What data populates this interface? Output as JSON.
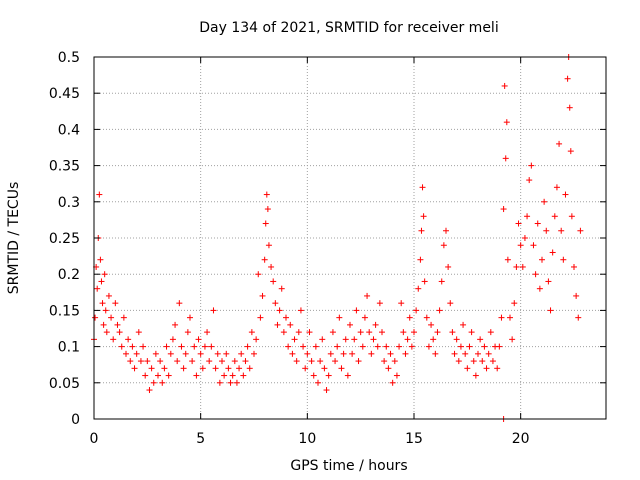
{
  "chart_data": {
    "type": "scatter",
    "title": "Day 134 of 2021, SRMTID for receiver meli",
    "xlabel": "GPS time / hours",
    "ylabel": "SRMTID / TECUs",
    "xlim": [
      0,
      24
    ],
    "ylim": [
      0,
      0.5
    ],
    "grid": true,
    "marker": "+",
    "color": "#ff0000",
    "x_ticks": [
      0,
      5,
      10,
      15,
      20
    ],
    "x_tick_labels": [
      "0",
      "5",
      "10",
      "15",
      "20"
    ],
    "y_ticks": [
      0,
      0.05,
      0.1,
      0.15,
      0.2,
      0.25,
      0.3,
      0.35,
      0.4,
      0.45,
      0.5
    ],
    "y_tick_labels": [
      "0",
      "0.05",
      "0.1",
      "0.15",
      "0.2",
      "0.25",
      "0.3",
      "0.35",
      "0.4",
      "0.45",
      "0.5"
    ],
    "series": [
      {
        "name": "SRMTID",
        "points": [
          [
            0.0,
            0.11
          ],
          [
            0.05,
            0.14
          ],
          [
            0.1,
            0.21
          ],
          [
            0.15,
            0.18
          ],
          [
            0.2,
            0.25
          ],
          [
            0.25,
            0.31
          ],
          [
            0.3,
            0.22
          ],
          [
            0.35,
            0.19
          ],
          [
            0.4,
            0.16
          ],
          [
            0.45,
            0.13
          ],
          [
            0.5,
            0.2
          ],
          [
            0.55,
            0.15
          ],
          [
            0.6,
            0.12
          ],
          [
            0.7,
            0.17
          ],
          [
            0.8,
            0.14
          ],
          [
            0.9,
            0.11
          ],
          [
            1.0,
            0.16
          ],
          [
            1.1,
            0.13
          ],
          [
            1.2,
            0.12
          ],
          [
            1.3,
            0.1
          ],
          [
            1.4,
            0.14
          ],
          [
            1.5,
            0.09
          ],
          [
            1.6,
            0.11
          ],
          [
            1.7,
            0.08
          ],
          [
            1.8,
            0.1
          ],
          [
            1.9,
            0.07
          ],
          [
            2.0,
            0.09
          ],
          [
            2.1,
            0.12
          ],
          [
            2.2,
            0.08
          ],
          [
            2.3,
            0.1
          ],
          [
            2.4,
            0.06
          ],
          [
            2.5,
            0.08
          ],
          [
            2.6,
            0.04
          ],
          [
            2.7,
            0.07
          ],
          [
            2.8,
            0.05
          ],
          [
            2.9,
            0.09
          ],
          [
            3.0,
            0.06
          ],
          [
            3.1,
            0.08
          ],
          [
            3.2,
            0.05
          ],
          [
            3.3,
            0.07
          ],
          [
            3.4,
            0.1
          ],
          [
            3.5,
            0.06
          ],
          [
            3.6,
            0.09
          ],
          [
            3.7,
            0.11
          ],
          [
            3.8,
            0.13
          ],
          [
            3.9,
            0.08
          ],
          [
            4.0,
            0.16
          ],
          [
            4.1,
            0.1
          ],
          [
            4.2,
            0.07
          ],
          [
            4.3,
            0.09
          ],
          [
            4.4,
            0.12
          ],
          [
            4.5,
            0.14
          ],
          [
            4.6,
            0.08
          ],
          [
            4.7,
            0.1
          ],
          [
            4.8,
            0.06
          ],
          [
            4.9,
            0.11
          ],
          [
            5.0,
            0.09
          ],
          [
            5.1,
            0.07
          ],
          [
            5.2,
            0.1
          ],
          [
            5.3,
            0.12
          ],
          [
            5.4,
            0.08
          ],
          [
            5.5,
            0.1
          ],
          [
            5.6,
            0.15
          ],
          [
            5.7,
            0.07
          ],
          [
            5.8,
            0.09
          ],
          [
            5.9,
            0.05
          ],
          [
            6.0,
            0.08
          ],
          [
            6.1,
            0.06
          ],
          [
            6.2,
            0.09
          ],
          [
            6.3,
            0.07
          ],
          [
            6.4,
            0.05
          ],
          [
            6.5,
            0.06
          ],
          [
            6.6,
            0.08
          ],
          [
            6.7,
            0.05
          ],
          [
            6.8,
            0.07
          ],
          [
            6.9,
            0.09
          ],
          [
            7.0,
            0.06
          ],
          [
            7.1,
            0.08
          ],
          [
            7.2,
            0.1
          ],
          [
            7.3,
            0.07
          ],
          [
            7.4,
            0.12
          ],
          [
            7.5,
            0.09
          ],
          [
            7.6,
            0.11
          ],
          [
            7.7,
            0.2
          ],
          [
            7.8,
            0.14
          ],
          [
            7.9,
            0.17
          ],
          [
            8.0,
            0.22
          ],
          [
            8.05,
            0.27
          ],
          [
            8.1,
            0.31
          ],
          [
            8.15,
            0.29
          ],
          [
            8.2,
            0.24
          ],
          [
            8.3,
            0.21
          ],
          [
            8.4,
            0.19
          ],
          [
            8.5,
            0.16
          ],
          [
            8.6,
            0.13
          ],
          [
            8.7,
            0.15
          ],
          [
            8.8,
            0.18
          ],
          [
            8.9,
            0.12
          ],
          [
            9.0,
            0.14
          ],
          [
            9.1,
            0.1
          ],
          [
            9.2,
            0.13
          ],
          [
            9.3,
            0.09
          ],
          [
            9.4,
            0.11
          ],
          [
            9.5,
            0.08
          ],
          [
            9.6,
            0.12
          ],
          [
            9.7,
            0.15
          ],
          [
            9.8,
            0.1
          ],
          [
            9.9,
            0.07
          ],
          [
            10.0,
            0.09
          ],
          [
            10.1,
            0.12
          ],
          [
            10.2,
            0.08
          ],
          [
            10.3,
            0.06
          ],
          [
            10.4,
            0.1
          ],
          [
            10.5,
            0.05
          ],
          [
            10.6,
            0.08
          ],
          [
            10.7,
            0.11
          ],
          [
            10.8,
            0.07
          ],
          [
            10.9,
            0.04
          ],
          [
            11.0,
            0.06
          ],
          [
            11.1,
            0.09
          ],
          [
            11.2,
            0.12
          ],
          [
            11.3,
            0.08
          ],
          [
            11.4,
            0.1
          ],
          [
            11.5,
            0.14
          ],
          [
            11.6,
            0.07
          ],
          [
            11.7,
            0.09
          ],
          [
            11.8,
            0.11
          ],
          [
            11.9,
            0.06
          ],
          [
            12.0,
            0.13
          ],
          [
            12.1,
            0.09
          ],
          [
            12.2,
            0.11
          ],
          [
            12.3,
            0.15
          ],
          [
            12.4,
            0.08
          ],
          [
            12.5,
            0.12
          ],
          [
            12.6,
            0.1
          ],
          [
            12.7,
            0.14
          ],
          [
            12.8,
            0.17
          ],
          [
            12.9,
            0.12
          ],
          [
            13.0,
            0.09
          ],
          [
            13.1,
            0.11
          ],
          [
            13.2,
            0.13
          ],
          [
            13.3,
            0.1
          ],
          [
            13.4,
            0.16
          ],
          [
            13.5,
            0.12
          ],
          [
            13.6,
            0.08
          ],
          [
            13.7,
            0.1
          ],
          [
            13.8,
            0.07
          ],
          [
            13.9,
            0.09
          ],
          [
            14.0,
            0.05
          ],
          [
            14.1,
            0.08
          ],
          [
            14.2,
            0.06
          ],
          [
            14.3,
            0.1
          ],
          [
            14.4,
            0.16
          ],
          [
            14.5,
            0.12
          ],
          [
            14.6,
            0.09
          ],
          [
            14.7,
            0.11
          ],
          [
            14.8,
            0.14
          ],
          [
            14.9,
            0.1
          ],
          [
            15.0,
            0.12
          ],
          [
            15.1,
            0.15
          ],
          [
            15.2,
            0.18
          ],
          [
            15.3,
            0.22
          ],
          [
            15.35,
            0.26
          ],
          [
            15.4,
            0.32
          ],
          [
            15.45,
            0.28
          ],
          [
            15.5,
            0.19
          ],
          [
            15.6,
            0.14
          ],
          [
            15.7,
            0.1
          ],
          [
            15.8,
            0.13
          ],
          [
            15.9,
            0.11
          ],
          [
            16.0,
            0.09
          ],
          [
            16.1,
            0.12
          ],
          [
            16.2,
            0.15
          ],
          [
            16.3,
            0.19
          ],
          [
            16.4,
            0.24
          ],
          [
            16.5,
            0.26
          ],
          [
            16.6,
            0.21
          ],
          [
            16.7,
            0.16
          ],
          [
            16.8,
            0.12
          ],
          [
            16.9,
            0.09
          ],
          [
            17.0,
            0.11
          ],
          [
            17.1,
            0.08
          ],
          [
            17.2,
            0.1
          ],
          [
            17.3,
            0.13
          ],
          [
            17.4,
            0.09
          ],
          [
            17.5,
            0.07
          ],
          [
            17.6,
            0.1
          ],
          [
            17.7,
            0.12
          ],
          [
            17.8,
            0.08
          ],
          [
            17.9,
            0.06
          ],
          [
            18.0,
            0.09
          ],
          [
            18.1,
            0.11
          ],
          [
            18.2,
            0.08
          ],
          [
            18.3,
            0.1
          ],
          [
            18.4,
            0.07
          ],
          [
            18.5,
            0.09
          ],
          [
            18.6,
            0.12
          ],
          [
            18.7,
            0.08
          ],
          [
            18.8,
            0.1
          ],
          [
            18.9,
            0.07
          ],
          [
            19.0,
            0.1
          ],
          [
            19.1,
            0.14
          ],
          [
            19.2,
            0.29
          ],
          [
            19.25,
            0.46
          ],
          [
            19.3,
            0.36
          ],
          [
            19.35,
            0.41
          ],
          [
            19.4,
            0.22
          ],
          [
            19.5,
            0.14
          ],
          [
            19.6,
            0.11
          ],
          [
            19.7,
            0.16
          ],
          [
            19.8,
            0.21
          ],
          [
            19.9,
            0.27
          ],
          [
            20.0,
            0.24
          ],
          [
            20.1,
            0.21
          ],
          [
            20.2,
            0.25
          ],
          [
            20.3,
            0.28
          ],
          [
            20.4,
            0.33
          ],
          [
            20.5,
            0.35
          ],
          [
            20.6,
            0.24
          ],
          [
            20.7,
            0.2
          ],
          [
            20.8,
            0.27
          ],
          [
            20.9,
            0.18
          ],
          [
            21.0,
            0.22
          ],
          [
            21.1,
            0.3
          ],
          [
            21.2,
            0.26
          ],
          [
            21.3,
            0.19
          ],
          [
            21.4,
            0.15
          ],
          [
            21.5,
            0.23
          ],
          [
            21.6,
            0.28
          ],
          [
            21.7,
            0.32
          ],
          [
            21.8,
            0.38
          ],
          [
            21.9,
            0.26
          ],
          [
            22.0,
            0.22
          ],
          [
            22.1,
            0.31
          ],
          [
            22.2,
            0.47
          ],
          [
            22.25,
            0.5
          ],
          [
            22.3,
            0.43
          ],
          [
            22.35,
            0.37
          ],
          [
            22.4,
            0.28
          ],
          [
            22.5,
            0.21
          ],
          [
            22.6,
            0.17
          ],
          [
            22.7,
            0.14
          ],
          [
            22.8,
            0.26
          ],
          [
            19.2,
            0.0
          ]
        ]
      }
    ]
  }
}
